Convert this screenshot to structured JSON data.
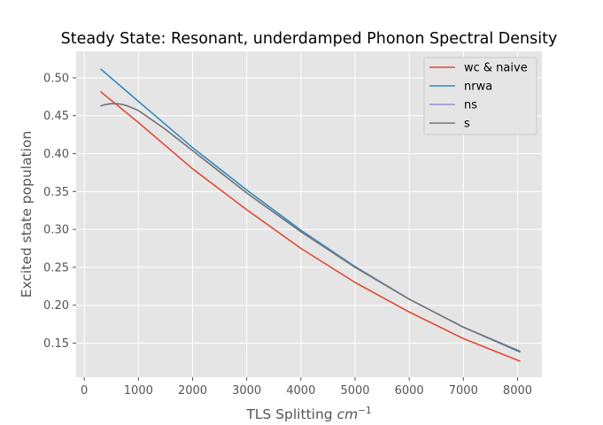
{
  "chart_data": {
    "type": "line",
    "title": "Steady State: Resonant, underdamped Phonon Spectral Density",
    "xlabel": "TLS Splitting",
    "xlabel_unit_base": "cm",
    "xlabel_unit_exp": "−1",
    "ylabel": "Excited state population",
    "xlim": [
      -150,
      8450
    ],
    "ylim": [
      0.105,
      0.535
    ],
    "xticks": [
      0,
      1000,
      2000,
      3000,
      4000,
      5000,
      6000,
      7000,
      8000
    ],
    "xtick_labels": [
      "0",
      "1000",
      "2000",
      "3000",
      "4000",
      "5000",
      "6000",
      "7000",
      "8000"
    ],
    "yticks": [
      0.15,
      0.2,
      0.25,
      0.3,
      0.35,
      0.4,
      0.45,
      0.5
    ],
    "ytick_labels": [
      "0.15",
      "0.20",
      "0.25",
      "0.30",
      "0.35",
      "0.40",
      "0.45",
      "0.50"
    ],
    "grid": true,
    "legend_position": "top-right",
    "background": "#e5e5e5",
    "series": [
      {
        "name": "wc & naive",
        "color": "#e24a33",
        "x": [
          300,
          1000,
          2000,
          3000,
          4000,
          5000,
          6000,
          7000,
          8050
        ],
        "y": [
          0.482,
          0.441,
          0.38,
          0.326,
          0.275,
          0.23,
          0.191,
          0.156,
          0.126
        ]
      },
      {
        "name": "nrwa",
        "color": "#348abd",
        "x": [
          300,
          1000,
          2000,
          3000,
          4000,
          5000,
          6000,
          7000,
          8050
        ],
        "y": [
          0.512,
          0.469,
          0.408,
          0.352,
          0.299,
          0.251,
          0.208,
          0.171,
          0.138
        ]
      },
      {
        "name": "ns",
        "color": "#988ed5",
        "x": [
          300,
          400,
          500,
          600,
          700,
          800,
          1000,
          1500,
          2000,
          3000,
          4000,
          5000,
          6000,
          7000,
          8050
        ],
        "y": [
          0.463,
          0.465,
          0.466,
          0.466,
          0.465,
          0.463,
          0.457,
          0.432,
          0.404,
          0.348,
          0.297,
          0.25,
          0.208,
          0.171,
          0.139
        ]
      },
      {
        "name": "s",
        "color": "#777777",
        "x": [
          300,
          400,
          500,
          600,
          700,
          800,
          1000,
          1500,
          2000,
          3000,
          4000,
          5000,
          6000,
          7000,
          8050
        ],
        "y": [
          0.463,
          0.465,
          0.466,
          0.466,
          0.465,
          0.463,
          0.457,
          0.432,
          0.404,
          0.348,
          0.297,
          0.25,
          0.208,
          0.171,
          0.139
        ]
      }
    ]
  }
}
